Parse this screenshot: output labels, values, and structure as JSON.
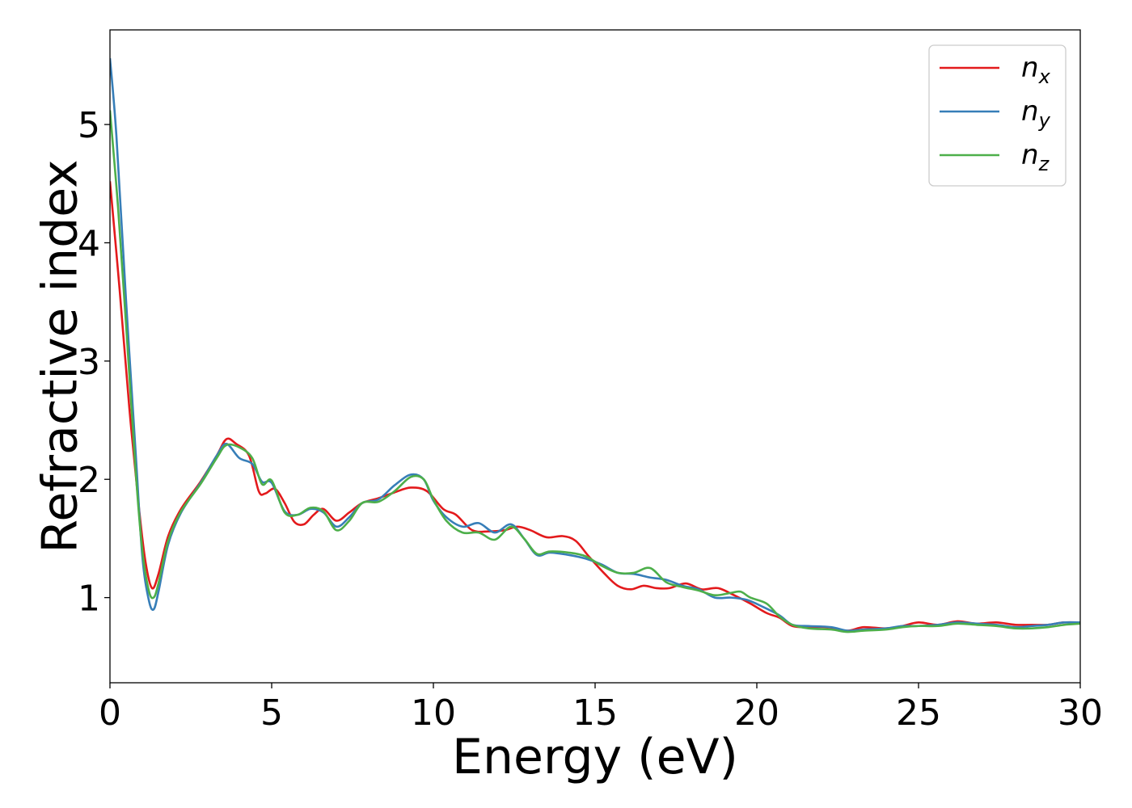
{
  "chart_data": {
    "type": "line",
    "title": "",
    "xlabel": "Energy (eV)",
    "ylabel": "Refractive index",
    "xlim": [
      0,
      30
    ],
    "ylim": [
      0.28,
      5.8
    ],
    "x_ticks": [
      "0",
      "5",
      "10",
      "15",
      "20",
      "25",
      "30"
    ],
    "y_ticks": [
      "1",
      "2",
      "3",
      "4",
      "5"
    ],
    "x_tick_values": [
      0,
      5,
      10,
      15,
      20,
      25,
      30
    ],
    "y_tick_values": [
      1,
      2,
      3,
      4,
      5
    ],
    "grid": false,
    "legend_position": "top-right",
    "series": [
      {
        "name": "n",
        "subscript": "x",
        "color": "#e31a1c",
        "points": [
          [
            0,
            4.52
          ],
          [
            0.3,
            3.6
          ],
          [
            0.6,
            2.6
          ],
          [
            0.9,
            1.75
          ],
          [
            1.1,
            1.3
          ],
          [
            1.3,
            1.08
          ],
          [
            1.5,
            1.2
          ],
          [
            1.8,
            1.52
          ],
          [
            2.2,
            1.75
          ],
          [
            2.8,
            1.98
          ],
          [
            3.3,
            2.2
          ],
          [
            3.6,
            2.34
          ],
          [
            3.9,
            2.3
          ],
          [
            4.3,
            2.2
          ],
          [
            4.6,
            1.9
          ],
          [
            4.8,
            1.88
          ],
          [
            5.1,
            1.92
          ],
          [
            5.4,
            1.8
          ],
          [
            5.7,
            1.64
          ],
          [
            6.0,
            1.62
          ],
          [
            6.3,
            1.7
          ],
          [
            6.6,
            1.75
          ],
          [
            7.0,
            1.65
          ],
          [
            7.4,
            1.72
          ],
          [
            7.8,
            1.8
          ],
          [
            8.3,
            1.84
          ],
          [
            8.8,
            1.89
          ],
          [
            9.3,
            1.93
          ],
          [
            9.8,
            1.9
          ],
          [
            10.3,
            1.75
          ],
          [
            10.7,
            1.7
          ],
          [
            11.2,
            1.57
          ],
          [
            11.7,
            1.56
          ],
          [
            12.2,
            1.57
          ],
          [
            12.6,
            1.6
          ],
          [
            13.0,
            1.57
          ],
          [
            13.5,
            1.51
          ],
          [
            14.0,
            1.52
          ],
          [
            14.4,
            1.48
          ],
          [
            14.8,
            1.35
          ],
          [
            15.3,
            1.2
          ],
          [
            15.7,
            1.1
          ],
          [
            16.1,
            1.07
          ],
          [
            16.5,
            1.1
          ],
          [
            16.9,
            1.08
          ],
          [
            17.3,
            1.08
          ],
          [
            17.8,
            1.12
          ],
          [
            18.3,
            1.07
          ],
          [
            18.8,
            1.08
          ],
          [
            19.3,
            1.02
          ],
          [
            19.8,
            0.95
          ],
          [
            20.3,
            0.87
          ],
          [
            20.7,
            0.83
          ],
          [
            21.1,
            0.76
          ],
          [
            21.6,
            0.75
          ],
          [
            22.2,
            0.75
          ],
          [
            22.8,
            0.72
          ],
          [
            23.3,
            0.75
          ],
          [
            24.0,
            0.74
          ],
          [
            24.5,
            0.76
          ],
          [
            25.0,
            0.79
          ],
          [
            25.6,
            0.77
          ],
          [
            26.2,
            0.8
          ],
          [
            26.8,
            0.78
          ],
          [
            27.4,
            0.79
          ],
          [
            28.0,
            0.77
          ],
          [
            28.5,
            0.77
          ],
          [
            29.0,
            0.77
          ],
          [
            29.5,
            0.79
          ],
          [
            30.0,
            0.79
          ]
        ]
      },
      {
        "name": "n",
        "subscript": "y",
        "color": "#377eb8",
        "points": [
          [
            0,
            5.56
          ],
          [
            0.2,
            4.9
          ],
          [
            0.5,
            3.5
          ],
          [
            0.8,
            2.2
          ],
          [
            1.0,
            1.35
          ],
          [
            1.2,
            0.98
          ],
          [
            1.35,
            0.9
          ],
          [
            1.5,
            1.05
          ],
          [
            1.8,
            1.45
          ],
          [
            2.2,
            1.72
          ],
          [
            2.8,
            1.97
          ],
          [
            3.3,
            2.2
          ],
          [
            3.6,
            2.3
          ],
          [
            4.0,
            2.18
          ],
          [
            4.4,
            2.13
          ],
          [
            4.7,
            1.98
          ],
          [
            5.0,
            1.97
          ],
          [
            5.4,
            1.73
          ],
          [
            5.8,
            1.7
          ],
          [
            6.2,
            1.75
          ],
          [
            6.6,
            1.72
          ],
          [
            7.0,
            1.6
          ],
          [
            7.4,
            1.68
          ],
          [
            7.8,
            1.8
          ],
          [
            8.3,
            1.83
          ],
          [
            8.8,
            1.95
          ],
          [
            9.3,
            2.04
          ],
          [
            9.7,
            2.0
          ],
          [
            10.0,
            1.82
          ],
          [
            10.4,
            1.68
          ],
          [
            10.9,
            1.6
          ],
          [
            11.4,
            1.63
          ],
          [
            11.9,
            1.55
          ],
          [
            12.4,
            1.62
          ],
          [
            12.8,
            1.5
          ],
          [
            13.2,
            1.36
          ],
          [
            13.6,
            1.38
          ],
          [
            14.2,
            1.36
          ],
          [
            14.7,
            1.33
          ],
          [
            15.2,
            1.28
          ],
          [
            15.7,
            1.21
          ],
          [
            16.2,
            1.2
          ],
          [
            16.7,
            1.17
          ],
          [
            17.2,
            1.15
          ],
          [
            17.7,
            1.1
          ],
          [
            18.2,
            1.07
          ],
          [
            18.7,
            1.0
          ],
          [
            19.2,
            1.0
          ],
          [
            19.7,
            0.98
          ],
          [
            20.2,
            0.92
          ],
          [
            20.7,
            0.85
          ],
          [
            21.1,
            0.77
          ],
          [
            21.6,
            0.76
          ],
          [
            22.3,
            0.75
          ],
          [
            22.8,
            0.72
          ],
          [
            23.3,
            0.73
          ],
          [
            24.0,
            0.74
          ],
          [
            24.5,
            0.76
          ],
          [
            25.0,
            0.76
          ],
          [
            25.6,
            0.77
          ],
          [
            26.2,
            0.79
          ],
          [
            26.8,
            0.78
          ],
          [
            27.4,
            0.77
          ],
          [
            28.0,
            0.75
          ],
          [
            28.5,
            0.76
          ],
          [
            29.0,
            0.77
          ],
          [
            29.5,
            0.79
          ],
          [
            30.0,
            0.79
          ]
        ]
      },
      {
        "name": "n",
        "subscript": "z",
        "color": "#4daf4a",
        "points": [
          [
            0,
            5.12
          ],
          [
            0.25,
            4.3
          ],
          [
            0.5,
            3.3
          ],
          [
            0.8,
            2.05
          ],
          [
            1.0,
            1.4
          ],
          [
            1.2,
            1.06
          ],
          [
            1.35,
            1.0
          ],
          [
            1.5,
            1.12
          ],
          [
            1.8,
            1.48
          ],
          [
            2.2,
            1.73
          ],
          [
            2.8,
            1.96
          ],
          [
            3.3,
            2.18
          ],
          [
            3.6,
            2.29
          ],
          [
            4.0,
            2.27
          ],
          [
            4.4,
            2.18
          ],
          [
            4.7,
            1.96
          ],
          [
            5.0,
            1.99
          ],
          [
            5.4,
            1.72
          ],
          [
            5.8,
            1.7
          ],
          [
            6.2,
            1.76
          ],
          [
            6.6,
            1.73
          ],
          [
            7.0,
            1.57
          ],
          [
            7.4,
            1.65
          ],
          [
            7.8,
            1.8
          ],
          [
            8.3,
            1.81
          ],
          [
            8.8,
            1.9
          ],
          [
            9.3,
            2.02
          ],
          [
            9.7,
            2.0
          ],
          [
            10.0,
            1.83
          ],
          [
            10.4,
            1.65
          ],
          [
            10.9,
            1.55
          ],
          [
            11.4,
            1.55
          ],
          [
            11.9,
            1.49
          ],
          [
            12.4,
            1.6
          ],
          [
            12.8,
            1.5
          ],
          [
            13.2,
            1.37
          ],
          [
            13.6,
            1.39
          ],
          [
            14.2,
            1.38
          ],
          [
            14.7,
            1.35
          ],
          [
            15.2,
            1.27
          ],
          [
            15.7,
            1.21
          ],
          [
            16.2,
            1.21
          ],
          [
            16.7,
            1.25
          ],
          [
            17.2,
            1.13
          ],
          [
            17.7,
            1.09
          ],
          [
            18.2,
            1.06
          ],
          [
            18.7,
            1.02
          ],
          [
            19.2,
            1.04
          ],
          [
            19.5,
            1.05
          ],
          [
            19.8,
            1.0
          ],
          [
            20.3,
            0.95
          ],
          [
            20.7,
            0.84
          ],
          [
            21.1,
            0.77
          ],
          [
            21.6,
            0.74
          ],
          [
            22.3,
            0.73
          ],
          [
            22.8,
            0.71
          ],
          [
            23.3,
            0.72
          ],
          [
            24.0,
            0.73
          ],
          [
            24.5,
            0.75
          ],
          [
            25.0,
            0.76
          ],
          [
            25.6,
            0.76
          ],
          [
            26.2,
            0.78
          ],
          [
            26.8,
            0.77
          ],
          [
            27.4,
            0.76
          ],
          [
            28.0,
            0.74
          ],
          [
            28.5,
            0.74
          ],
          [
            29.0,
            0.75
          ],
          [
            29.5,
            0.77
          ],
          [
            30.0,
            0.78
          ]
        ]
      }
    ]
  }
}
